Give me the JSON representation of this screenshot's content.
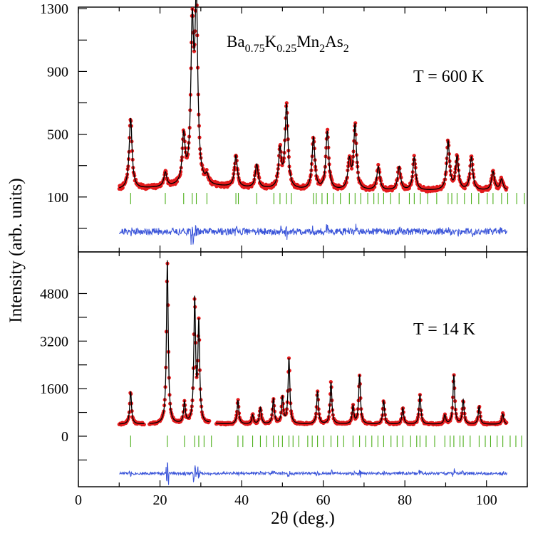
{
  "chart_data": [
    {
      "panel": "top",
      "type": "line",
      "title": "Ba0.75K0.25Mn2As2",
      "formula": {
        "parts": [
          {
            "text": "Ba",
            "sub": false
          },
          {
            "text": "0.75",
            "sub": true
          },
          {
            "text": "K",
            "sub": false
          },
          {
            "text": "0.25",
            "sub": true
          },
          {
            "text": "Mn",
            "sub": false
          },
          {
            "text": "2",
            "sub": true
          },
          {
            "text": "As",
            "sub": false
          },
          {
            "text": "2",
            "sub": true
          }
        ]
      },
      "annotation": "T = 600 K",
      "xlabel": "2θ (deg.)",
      "ylabel": "Intensity (arb. units)",
      "xlim": [
        0,
        110
      ],
      "ylim": [
        -250,
        1310
      ],
      "yticks": [
        1300,
        900,
        500,
        100
      ],
      "ytick_labels": [
        "1300",
        "900",
        "500",
        "100"
      ],
      "background": 140,
      "x_start": 10,
      "x_end": 105,
      "peaks": [
        {
          "x": 12.8,
          "h": 450
        },
        {
          "x": 21.3,
          "h": 90
        },
        {
          "x": 25.8,
          "h": 300
        },
        {
          "x": 27.9,
          "h": 950
        },
        {
          "x": 28.9,
          "h": 1130
        },
        {
          "x": 31.5,
          "h": 50
        },
        {
          "x": 38.6,
          "h": 200
        },
        {
          "x": 43.7,
          "h": 150
        },
        {
          "x": 49.4,
          "h": 240
        },
        {
          "x": 51.0,
          "h": 530
        },
        {
          "x": 57.6,
          "h": 330
        },
        {
          "x": 61.0,
          "h": 370
        },
        {
          "x": 66.4,
          "h": 180
        },
        {
          "x": 67.8,
          "h": 410
        },
        {
          "x": 73.5,
          "h": 150
        },
        {
          "x": 78.6,
          "h": 150
        },
        {
          "x": 82.3,
          "h": 210
        },
        {
          "x": 90.6,
          "h": 310
        },
        {
          "x": 92.8,
          "h": 210
        },
        {
          "x": 96.3,
          "h": 210
        },
        {
          "x": 101.6,
          "h": 120
        },
        {
          "x": 103.7,
          "h": 70
        }
      ],
      "bragg_positions": [
        12.8,
        21.3,
        25.8,
        27.9,
        28.9,
        31.5,
        38.6,
        39.2,
        43.7,
        47.9,
        49.4,
        51.0,
        52.2,
        57.6,
        58.3,
        59.7,
        61.0,
        62.5,
        64.2,
        66.4,
        67.8,
        69.2,
        70.9,
        72.4,
        73.5,
        74.8,
        76.5,
        78.6,
        81.1,
        82.3,
        83.8,
        85.6,
        87.8,
        90.6,
        91.5,
        92.8,
        94.6,
        96.3,
        98.1,
        100.2,
        101.6,
        103.7,
        105.2,
        107.4,
        109.3
      ],
      "bragg_level": 90,
      "difference_level": -120,
      "series": [
        {
          "name": "observed",
          "color": "#e31a1c",
          "marker": "circle"
        },
        {
          "name": "calculated",
          "color": "#000000",
          "marker": "line"
        },
        {
          "name": "Bragg positions",
          "color": "#4caf1a",
          "marker": "tick"
        },
        {
          "name": "difference",
          "color": "#3b55d9",
          "marker": "line"
        }
      ]
    },
    {
      "panel": "bottom",
      "type": "line",
      "annotation": "T = 14 K",
      "xlabel": "2θ (deg.)",
      "ylabel": "Intensity (arb. units)",
      "xlim": [
        0,
        110
      ],
      "ylim": [
        -1700,
        6200
      ],
      "xticks": [
        0,
        20,
        40,
        60,
        80,
        100
      ],
      "xtick_labels": [
        "0",
        "20",
        "40",
        "60",
        "80",
        "100"
      ],
      "yticks": [
        4800,
        3200,
        1600,
        0
      ],
      "ytick_labels": [
        "4800",
        "3200",
        "1600",
        "0"
      ],
      "background": 400,
      "x_start": 10,
      "x_end": 105,
      "peaks": [
        {
          "x": 12.8,
          "h": 1100
        },
        {
          "x": 21.8,
          "h": 5500
        },
        {
          "x": 26.0,
          "h": 700
        },
        {
          "x": 28.5,
          "h": 4100
        },
        {
          "x": 29.5,
          "h": 3300
        },
        {
          "x": 32.6,
          "h": 200
        },
        {
          "x": 39.1,
          "h": 800
        },
        {
          "x": 42.7,
          "h": 300
        },
        {
          "x": 44.6,
          "h": 550
        },
        {
          "x": 47.8,
          "h": 850
        },
        {
          "x": 50.0,
          "h": 900
        },
        {
          "x": 51.6,
          "h": 2200
        },
        {
          "x": 58.6,
          "h": 1100
        },
        {
          "x": 61.9,
          "h": 1400
        },
        {
          "x": 67.3,
          "h": 600
        },
        {
          "x": 68.9,
          "h": 1650
        },
        {
          "x": 74.8,
          "h": 800
        },
        {
          "x": 79.5,
          "h": 550
        },
        {
          "x": 83.7,
          "h": 1000
        },
        {
          "x": 89.8,
          "h": 300
        },
        {
          "x": 92.0,
          "h": 1650
        },
        {
          "x": 94.3,
          "h": 800
        },
        {
          "x": 98.2,
          "h": 600
        },
        {
          "x": 104.0,
          "h": 350
        }
      ],
      "gaps": [
        [
          16.2,
          17.4
        ],
        [
          32.2,
          33.7
        ]
      ],
      "bragg_positions": [
        12.8,
        21.8,
        26.0,
        28.5,
        29.5,
        30.8,
        32.6,
        39.1,
        40.3,
        42.7,
        44.6,
        46.1,
        47.8,
        49.0,
        50.0,
        51.6,
        52.6,
        54.0,
        56.2,
        57.3,
        58.6,
        60.1,
        61.9,
        63.5,
        65.0,
        67.3,
        68.9,
        70.4,
        71.9,
        73.4,
        74.8,
        76.6,
        78.1,
        79.5,
        81.4,
        82.9,
        83.7,
        85.2,
        87.3,
        89.8,
        91.1,
        92.0,
        93.5,
        94.3,
        96.0,
        98.2,
        99.7,
        101.0,
        102.6,
        104.0,
        105.8,
        107.2,
        108.6
      ],
      "bragg_level": -170,
      "difference_level": -1250,
      "series": [
        {
          "name": "observed",
          "color": "#e31a1c",
          "marker": "circle"
        },
        {
          "name": "calculated",
          "color": "#000000",
          "marker": "line"
        },
        {
          "name": "Bragg positions",
          "color": "#4caf1a",
          "marker": "tick"
        },
        {
          "name": "difference",
          "color": "#3b55d9",
          "marker": "line"
        }
      ]
    }
  ]
}
